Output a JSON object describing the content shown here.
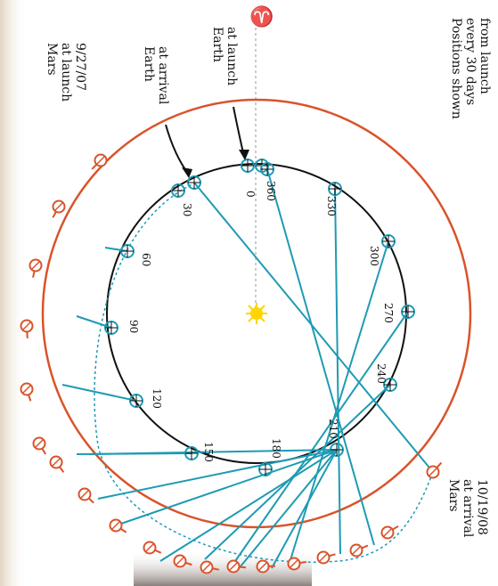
{
  "labels": {
    "mars_launch": [
      "Mars",
      "at launch",
      "9/27/07"
    ],
    "earth_arrival": [
      "Earth",
      "at arrival"
    ],
    "earth_launch": [
      "Earth",
      "at launch"
    ],
    "mars_arrival": [
      "Mars",
      "at arrival",
      "10/19/08"
    ],
    "positions_note": [
      "Positions shown",
      "every 30 days",
      "from launch"
    ],
    "vernal_equinox_symbol": "♈"
  },
  "day_marks": [
    "0",
    "30",
    "60",
    "90",
    "120",
    "150",
    "180",
    "210",
    "240",
    "270",
    "300",
    "330",
    "360"
  ],
  "colors": {
    "mars_orbit": "#d9532a",
    "earth_orbit": "#111111",
    "transfer_lines": "#1e9bb3",
    "sun": "#ffd400",
    "reference_line": "#bbbbbb"
  },
  "icons": {
    "sun": "sun-icon",
    "earth_marker": "crosshair-circle-icon",
    "mars_marker": "arrow-circle-icon",
    "equinox": "aries-symbol-icon"
  }
}
